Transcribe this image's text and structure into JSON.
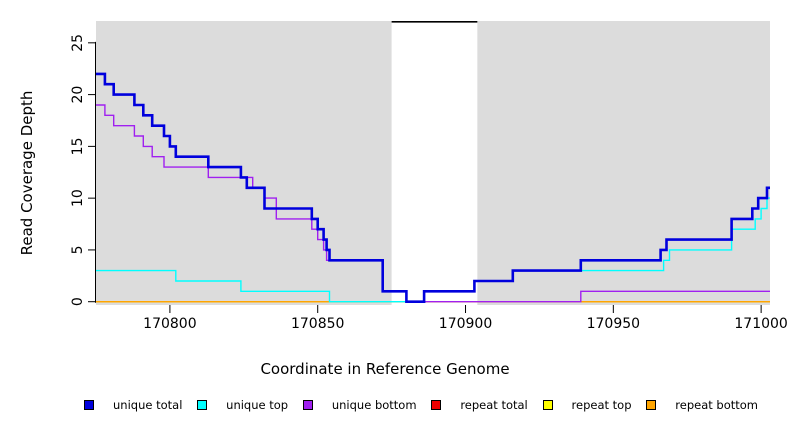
{
  "chart_data": {
    "type": "line",
    "subtype": "step",
    "title": "",
    "xlabel": "Coordinate in Reference Genome",
    "ylabel": "Read Coverage Depth",
    "xlim": [
      170775,
      171003
    ],
    "ylim": [
      0,
      27.4
    ],
    "xticks": [
      "170800",
      "170850",
      "170900",
      "170950",
      "171000"
    ],
    "xtick_values": [
      170800,
      170850,
      170900,
      170950,
      171000
    ],
    "yticks": [
      "0",
      "5",
      "10",
      "15",
      "20",
      "25"
    ],
    "ytick_values": [
      0,
      5,
      10,
      15,
      20,
      25
    ],
    "grid": false,
    "legend_position": "bottom",
    "page_background": "#ffffff",
    "plot_background": "#dcdcdc",
    "axis_color": "#000000",
    "repeat_region": {
      "start": 170875,
      "end": 170904,
      "fill": "#ffffff",
      "marker_color": "#000000"
    },
    "series": [
      {
        "name": "repeat total",
        "color": "#ee0000",
        "width": 1.4,
        "steps": [
          [
            170775,
            0
          ],
          [
            171003,
            0
          ]
        ]
      },
      {
        "name": "repeat top",
        "color": "#ffff00",
        "width": 1.4,
        "steps": [
          [
            170775,
            0
          ],
          [
            171003,
            0
          ]
        ]
      },
      {
        "name": "repeat bottom",
        "color": "#ffa500",
        "width": 1.4,
        "steps": [
          [
            170775,
            0
          ],
          [
            171003,
            0
          ]
        ]
      },
      {
        "name": "unique bottom",
        "color": "#a020f0",
        "width": 1.4,
        "steps": [
          [
            170775,
            19
          ],
          [
            170778,
            18
          ],
          [
            170781,
            17
          ],
          [
            170788,
            16
          ],
          [
            170791,
            15
          ],
          [
            170794,
            14
          ],
          [
            170798,
            13
          ],
          [
            170813,
            12
          ],
          [
            170828,
            11
          ],
          [
            170832,
            10
          ],
          [
            170836,
            8
          ],
          [
            170848,
            7
          ],
          [
            170850,
            6
          ],
          [
            170852,
            5
          ],
          [
            170853,
            4
          ],
          [
            170872,
            1
          ],
          [
            170880,
            0
          ],
          [
            170939,
            1
          ],
          [
            171003,
            1
          ]
        ]
      },
      {
        "name": "unique top",
        "color": "#00ffff",
        "width": 1.4,
        "steps": [
          [
            170775,
            3
          ],
          [
            170802,
            2
          ],
          [
            170824,
            1
          ],
          [
            170854,
            0
          ],
          [
            170886,
            1
          ],
          [
            170903,
            2
          ],
          [
            170916,
            3
          ],
          [
            170967,
            4
          ],
          [
            170969,
            5
          ],
          [
            170990,
            7
          ],
          [
            170998,
            8
          ],
          [
            171000,
            9
          ],
          [
            171002,
            10
          ],
          [
            171003,
            10
          ]
        ]
      },
      {
        "name": "unique total",
        "color": "#0000dd",
        "width": 2.6,
        "steps": [
          [
            170775,
            22
          ],
          [
            170778,
            21
          ],
          [
            170781,
            20
          ],
          [
            170788,
            19
          ],
          [
            170791,
            18
          ],
          [
            170794,
            17
          ],
          [
            170798,
            16
          ],
          [
            170800,
            15
          ],
          [
            170802,
            14
          ],
          [
            170813,
            13
          ],
          [
            170824,
            12
          ],
          [
            170826,
            11
          ],
          [
            170832,
            9
          ],
          [
            170848,
            8
          ],
          [
            170850,
            7
          ],
          [
            170852,
            6
          ],
          [
            170853,
            5
          ],
          [
            170854,
            4
          ],
          [
            170872,
            1
          ],
          [
            170880,
            0
          ],
          [
            170886,
            1
          ],
          [
            170903,
            2
          ],
          [
            170916,
            3
          ],
          [
            170939,
            4
          ],
          [
            170966,
            5
          ],
          [
            170968,
            6
          ],
          [
            170990,
            8
          ],
          [
            170997,
            9
          ],
          [
            170999,
            10
          ],
          [
            171002,
            11
          ],
          [
            171003,
            11
          ]
        ]
      }
    ],
    "legend": [
      {
        "label": "unique total",
        "color": "#0000dd"
      },
      {
        "label": "unique top",
        "color": "#00ffff"
      },
      {
        "label": "unique bottom",
        "color": "#a020f0"
      },
      {
        "label": "repeat total",
        "color": "#ee0000"
      },
      {
        "label": "repeat top",
        "color": "#ffff00"
      },
      {
        "label": "repeat bottom",
        "color": "#ffa500"
      }
    ]
  }
}
